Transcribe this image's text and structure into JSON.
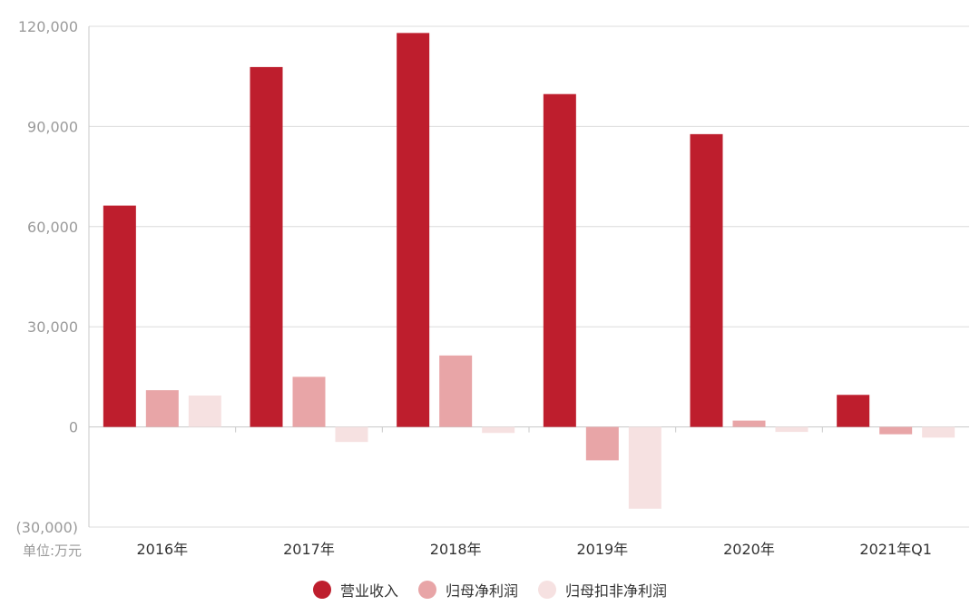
{
  "chart_data": {
    "type": "bar",
    "categories": [
      "2016年",
      "2017年",
      "2018年",
      "2019年",
      "2020年",
      "2021年Q1"
    ],
    "series": [
      {
        "name": "营业收入",
        "color": "#be1e2d",
        "values": [
          66300,
          107800,
          118000,
          99700,
          87700,
          9600
        ]
      },
      {
        "name": "归母净利润",
        "color": "#e8a5a7",
        "values": [
          11000,
          15000,
          21400,
          -10000,
          1900,
          -2200
        ]
      },
      {
        "name": "归母扣非净利润",
        "color": "#f6e1e1",
        "values": [
          9400,
          -4500,
          -1800,
          -24500,
          -1500,
          -3200
        ]
      }
    ],
    "ylim": [
      -30000,
      120000
    ],
    "yticks": [
      120000,
      90000,
      60000,
      30000,
      0,
      -30000
    ],
    "ytick_labels": [
      "120,000",
      "90,000",
      "60,000",
      "30,000",
      "0",
      "(30,000)"
    ],
    "unit_label": "单位:万元",
    "grid": true,
    "legend": "bottom"
  }
}
